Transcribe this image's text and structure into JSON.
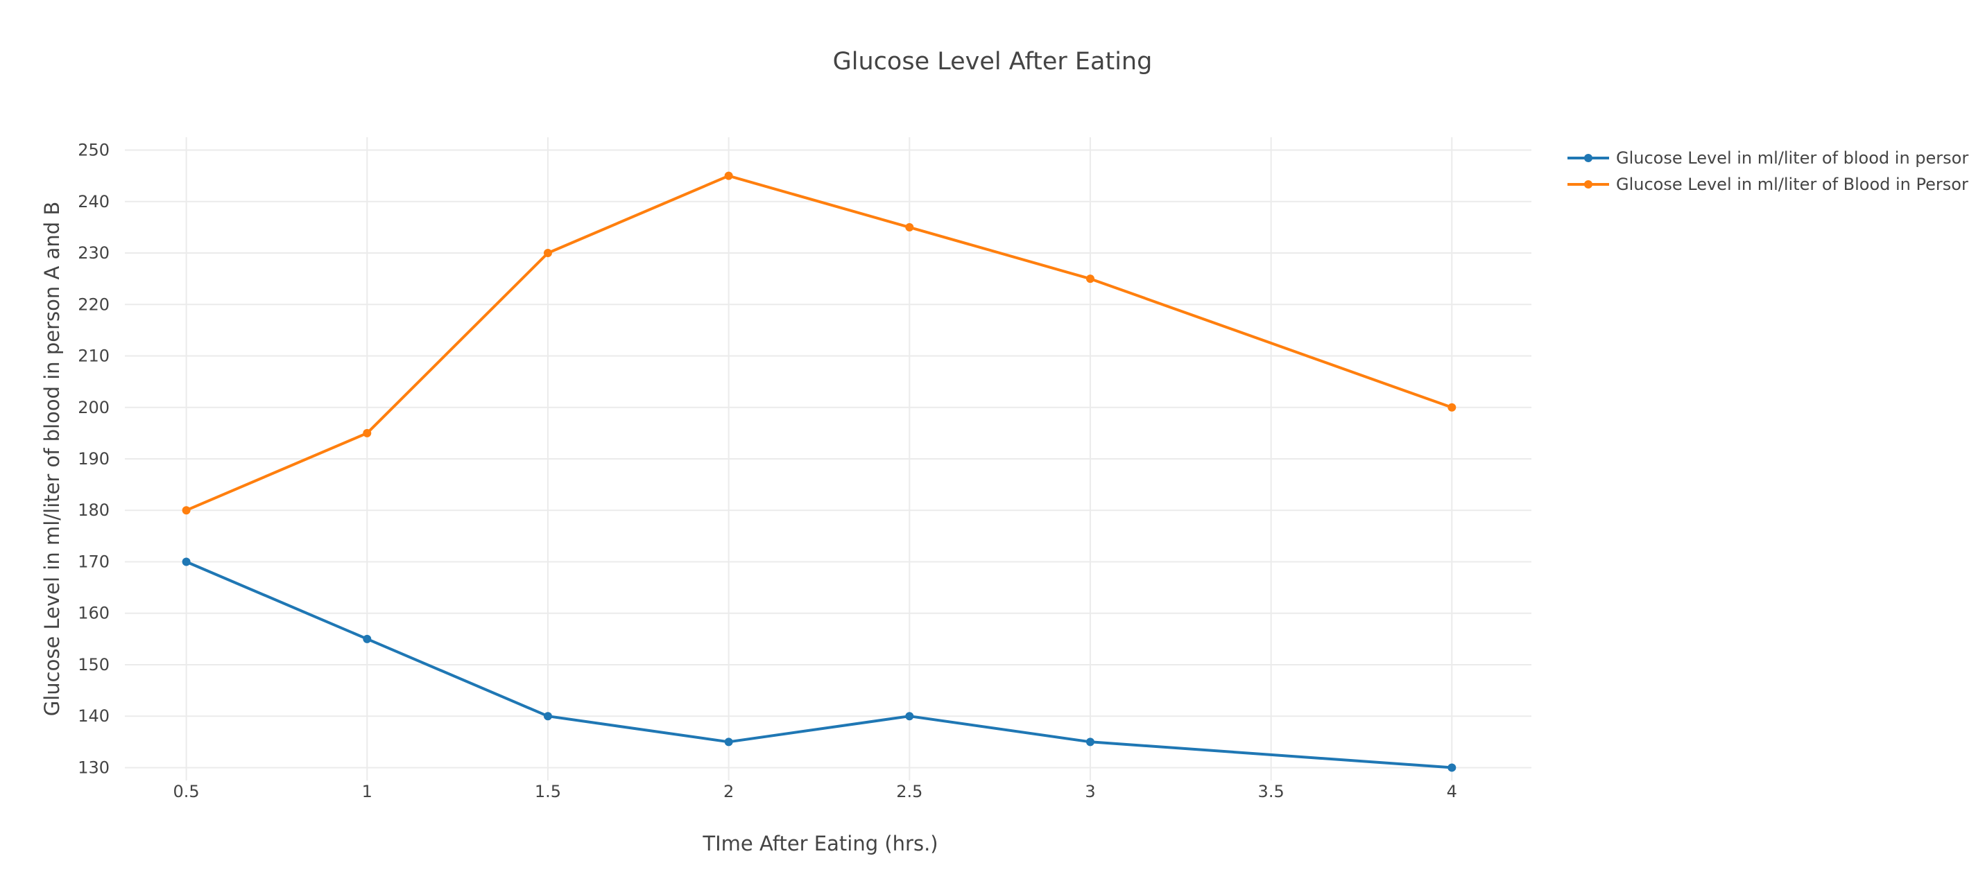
{
  "chart_data": {
    "type": "line",
    "title": "Glucose Level After Eating",
    "xlabel": "TIme After Eating (hrs.)",
    "ylabel": "Glucose Level in ml/liter of blood in person A and B",
    "x": [
      0.5,
      1,
      1.5,
      2,
      2.5,
      3,
      4
    ],
    "xlim": [
      0.33,
      4.22
    ],
    "ylim": [
      127.5,
      252.5
    ],
    "x_ticks": [
      "0.5",
      "1",
      "1.5",
      "2",
      "2.5",
      "3",
      "3.5",
      "4"
    ],
    "x_tick_values": [
      0.5,
      1,
      1.5,
      2,
      2.5,
      3,
      3.5,
      4
    ],
    "y_ticks": [
      "130",
      "140",
      "150",
      "160",
      "170",
      "180",
      "190",
      "200",
      "210",
      "220",
      "230",
      "240",
      "250"
    ],
    "y_tick_values": [
      130,
      140,
      150,
      160,
      170,
      180,
      190,
      200,
      210,
      220,
      230,
      240,
      250
    ],
    "grid": true,
    "legend_position": "top-right",
    "series": [
      {
        "name": "Glucose Level in ml/liter of blood in persor",
        "color": "#1f77b4",
        "values": [
          170,
          155,
          140,
          135,
          140,
          135,
          130
        ]
      },
      {
        "name": "Glucose Level in ml/liter of Blood in Persor",
        "color": "#ff7f0e",
        "values": [
          180,
          195,
          230,
          245,
          235,
          225,
          200
        ]
      }
    ]
  }
}
